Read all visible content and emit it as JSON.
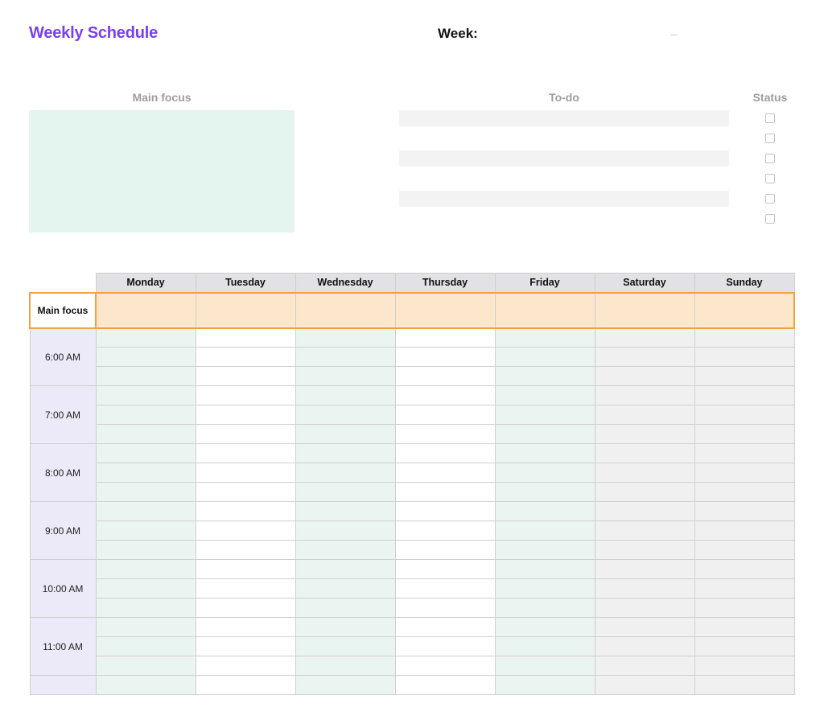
{
  "colors": {
    "title": "#7a3ff2",
    "muted_heading": "#9d9d9d",
    "mainfocus_box_bg": "#e4f4ef",
    "todo_row_shaded": "#f3f3f3",
    "todo_row_plain": "#ffffff",
    "checkbox_border": "#c3c3c3",
    "grid_border": "#d0d0d0",
    "day_header_bg": "#e1e1e6",
    "focus_row_bg": "#fde7cc",
    "focus_row_border": "#f0a23c",
    "time_label_bg": "#eceaf8",
    "weekday_cell_tint": "#eaf4f0",
    "weekday_cell_plain": "#ffffff",
    "weekend_cell_bg": "#f0f0f0"
  },
  "header": {
    "title": "Weekly Schedule",
    "week_label": "Week:",
    "week_dash": "–"
  },
  "mainfocus": {
    "heading": "Main focus"
  },
  "todo": {
    "heading": "To-do",
    "status_heading": "Status",
    "rows": 6,
    "row_shading": [
      "shaded",
      "plain",
      "shaded",
      "plain",
      "shaded",
      "plain"
    ]
  },
  "schedule": {
    "days": [
      "Monday",
      "Tuesday",
      "Wednesday",
      "Thursday",
      "Friday",
      "Saturday",
      "Sunday"
    ],
    "day_is_weekend": [
      false,
      false,
      false,
      false,
      false,
      true,
      true
    ],
    "focus_row_label": "Main focus",
    "time_slots": [
      "6:00 AM",
      "7:00 AM",
      "8:00 AM",
      "9:00 AM",
      "10:00 AM",
      "11:00 AM"
    ],
    "subrows_per_slot": 3,
    "weekday_tint_columns": [
      0,
      2,
      4
    ]
  }
}
